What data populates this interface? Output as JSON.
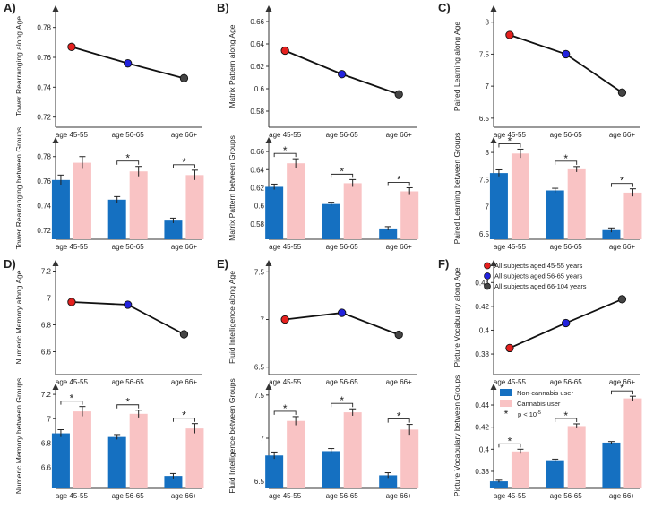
{
  "chart_data": [
    {
      "panel": "A)",
      "type": "line",
      "ylabel": "Tower Rearranging along Age",
      "categories": [
        "age 45-55",
        "age 56-65",
        "age 66+"
      ],
      "values": [
        0.767,
        0.756,
        0.746
      ],
      "ylim": [
        0.715,
        0.79
      ],
      "yticks": [
        0.72,
        0.74,
        0.76,
        0.78
      ]
    },
    {
      "panel": "B)",
      "type": "line",
      "ylabel": "Matrix Pattern along Age",
      "categories": [
        "age 45-55",
        "age 56-65",
        "age 66+"
      ],
      "values": [
        0.634,
        0.613,
        0.595
      ],
      "ylim": [
        0.568,
        0.668
      ],
      "yticks": [
        0.58,
        0.6,
        0.62,
        0.64,
        0.66
      ]
    },
    {
      "panel": "C)",
      "type": "line",
      "ylabel": "Paired Learning along Age",
      "categories": [
        "age 45-55",
        "age 56-65",
        "age 66+"
      ],
      "values": [
        7.8,
        7.5,
        6.9
      ],
      "ylim": [
        6.4,
        8.15
      ],
      "yticks": [
        6.5,
        7.0,
        7.5,
        8.0
      ]
    },
    {
      "panel": "",
      "type": "bar",
      "ylabel": "Tower Rearranging between Groups",
      "categories": [
        "age 45-55",
        "age 56-65",
        "age 66+"
      ],
      "series": [
        {
          "name": "Non-cannabis user",
          "values": [
            0.761,
            0.745,
            0.728
          ],
          "errors": [
            0.004,
            0.0025,
            0.002
          ]
        },
        {
          "name": "Cannabis user",
          "values": [
            0.775,
            0.768,
            0.765
          ],
          "errors": [
            0.005,
            0.004,
            0.004
          ]
        }
      ],
      "significant": [
        false,
        true,
        true
      ],
      "ylim": [
        0.715,
        0.79
      ],
      "yticks": [
        0.72,
        0.74,
        0.76,
        0.78
      ]
    },
    {
      "panel": "",
      "type": "bar",
      "ylabel": "Matrix Pattern between Groups",
      "categories": [
        "age 45-55",
        "age 56-65",
        "age 66+"
      ],
      "series": [
        {
          "name": "Non-cannabis user",
          "values": [
            0.621,
            0.602,
            0.575
          ],
          "errors": [
            0.003,
            0.002,
            0.002
          ]
        },
        {
          "name": "Cannabis user",
          "values": [
            0.647,
            0.625,
            0.616
          ],
          "errors": [
            0.005,
            0.004,
            0.004
          ]
        }
      ],
      "significant": [
        true,
        true,
        true
      ],
      "ylim": [
        0.566,
        0.668
      ],
      "yticks": [
        0.58,
        0.6,
        0.62,
        0.64,
        0.66
      ]
    },
    {
      "panel": "",
      "type": "bar",
      "ylabel": "Paired Learning between Groups",
      "categories": [
        "age 45-55",
        "age 56-65",
        "age 66+"
      ],
      "series": [
        {
          "name": "Non-cannabis user",
          "values": [
            7.62,
            7.3,
            6.57
          ],
          "errors": [
            0.06,
            0.04,
            0.04
          ]
        },
        {
          "name": "Cannabis user",
          "values": [
            7.98,
            7.69,
            7.26
          ],
          "errors": [
            0.08,
            0.05,
            0.07
          ]
        }
      ],
      "significant": [
        true,
        true,
        true
      ],
      "ylim": [
        6.45,
        8.15
      ],
      "yticks": [
        6.5,
        7.0,
        7.5,
        8.0
      ]
    },
    {
      "panel": "D)",
      "type": "line",
      "ylabel": "Numeric Memory along Age",
      "categories": [
        "age 45-55",
        "age 56-65",
        "age 66+"
      ],
      "values": [
        6.97,
        6.95,
        6.73
      ],
      "ylim": [
        6.45,
        7.23
      ],
      "yticks": [
        6.6,
        6.8,
        7.0,
        7.2
      ]
    },
    {
      "panel": "E)",
      "type": "line",
      "ylabel": "Fluid Intelligence along Age",
      "categories": [
        "age 45-55",
        "age 56-65",
        "age 66+"
      ],
      "values": [
        7.0,
        7.07,
        6.84
      ],
      "ylim": [
        6.45,
        7.55
      ],
      "yticks": [
        6.5,
        7.0,
        7.5
      ]
    },
    {
      "panel": "F)",
      "type": "line",
      "ylabel": "Picture Vocabulary along Age",
      "categories": [
        "age 45-55",
        "age 56-65",
        "age 66+"
      ],
      "values": [
        0.385,
        0.406,
        0.426
      ],
      "ylim": [
        0.365,
        0.453
      ],
      "yticks": [
        0.38,
        0.4,
        0.42,
        0.44
      ]
    },
    {
      "panel": "",
      "type": "bar",
      "ylabel": "Numeric Memory between Groups",
      "categories": [
        "age 45-55",
        "age 56-65",
        "age 66+"
      ],
      "series": [
        {
          "name": "Non-cannabis user",
          "values": [
            6.88,
            6.85,
            6.53
          ],
          "errors": [
            0.03,
            0.02,
            0.02
          ]
        },
        {
          "name": "Cannabis user",
          "values": [
            7.06,
            7.04,
            6.92
          ],
          "errors": [
            0.04,
            0.03,
            0.04
          ]
        }
      ],
      "significant": [
        true,
        true,
        true
      ],
      "ylim": [
        6.45,
        7.23
      ],
      "yticks": [
        6.6,
        6.8,
        7.0,
        7.2
      ]
    },
    {
      "panel": "",
      "type": "bar",
      "ylabel": "Fluid Intelligence between Groups",
      "categories": [
        "age 45-55",
        "age 56-65",
        "age 66+"
      ],
      "series": [
        {
          "name": "Non-cannabis user",
          "values": [
            6.8,
            6.85,
            6.57
          ],
          "errors": [
            0.04,
            0.03,
            0.03
          ]
        },
        {
          "name": "Cannabis user",
          "values": [
            7.2,
            7.3,
            7.1
          ],
          "errors": [
            0.05,
            0.04,
            0.06
          ]
        }
      ],
      "significant": [
        true,
        true,
        true
      ],
      "ylim": [
        6.45,
        7.55
      ],
      "yticks": [
        6.5,
        7.0,
        7.5
      ]
    },
    {
      "panel": "",
      "type": "bar",
      "ylabel": "Picture Vocabulary between Groups",
      "categories": [
        "age 45-55",
        "age 56-65",
        "age 66+"
      ],
      "series": [
        {
          "name": "Non-cannabis user",
          "values": [
            0.371,
            0.39,
            0.406
          ],
          "errors": [
            0.001,
            0.001,
            0.001
          ]
        },
        {
          "name": "Cannabis user",
          "values": [
            0.398,
            0.421,
            0.446
          ],
          "errors": [
            0.002,
            0.002,
            0.002
          ]
        }
      ],
      "significant": [
        true,
        true,
        true
      ],
      "ylim": [
        0.367,
        0.453
      ],
      "yticks": [
        0.38,
        0.4,
        0.42,
        0.44
      ]
    }
  ],
  "point_legend": [
    {
      "label": "All subjects aged 45-55 years",
      "color": "#e5201e"
    },
    {
      "label": "All subjects aged 56-65 years",
      "color": "#2222dd"
    },
    {
      "label": "All subjects aged 66-104 years",
      "color": "#444444"
    }
  ],
  "bar_legend": {
    "non_cannabis": "Non-cannabis user",
    "cannabis": "Cannabis user",
    "significance_symbol": "*",
    "significance_label": "p < 10",
    "significance_exponent": "-5"
  },
  "colors": {
    "non_cannabis": "#1570c1",
    "cannabis": "#f9c3c4",
    "axis": "#333333",
    "line": "#111111"
  }
}
